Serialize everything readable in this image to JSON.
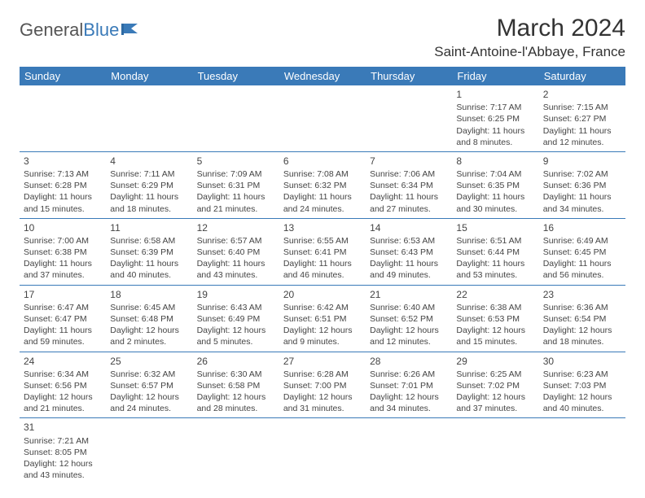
{
  "logo": {
    "text1": "General",
    "text2": "Blue"
  },
  "title": "March 2024",
  "location": "Saint-Antoine-l'Abbaye, France",
  "colors": {
    "header_bg": "#3a7ab8",
    "header_text": "#ffffff",
    "cell_border": "#3a7ab8",
    "body_text": "#444444",
    "title_text": "#333333"
  },
  "day_headers": [
    "Sunday",
    "Monday",
    "Tuesday",
    "Wednesday",
    "Thursday",
    "Friday",
    "Saturday"
  ],
  "weeks": [
    [
      null,
      null,
      null,
      null,
      null,
      {
        "n": "1",
        "sr": "Sunrise: 7:17 AM",
        "ss": "Sunset: 6:25 PM",
        "dl1": "Daylight: 11 hours",
        "dl2": "and 8 minutes."
      },
      {
        "n": "2",
        "sr": "Sunrise: 7:15 AM",
        "ss": "Sunset: 6:27 PM",
        "dl1": "Daylight: 11 hours",
        "dl2": "and 12 minutes."
      }
    ],
    [
      {
        "n": "3",
        "sr": "Sunrise: 7:13 AM",
        "ss": "Sunset: 6:28 PM",
        "dl1": "Daylight: 11 hours",
        "dl2": "and 15 minutes."
      },
      {
        "n": "4",
        "sr": "Sunrise: 7:11 AM",
        "ss": "Sunset: 6:29 PM",
        "dl1": "Daylight: 11 hours",
        "dl2": "and 18 minutes."
      },
      {
        "n": "5",
        "sr": "Sunrise: 7:09 AM",
        "ss": "Sunset: 6:31 PM",
        "dl1": "Daylight: 11 hours",
        "dl2": "and 21 minutes."
      },
      {
        "n": "6",
        "sr": "Sunrise: 7:08 AM",
        "ss": "Sunset: 6:32 PM",
        "dl1": "Daylight: 11 hours",
        "dl2": "and 24 minutes."
      },
      {
        "n": "7",
        "sr": "Sunrise: 7:06 AM",
        "ss": "Sunset: 6:34 PM",
        "dl1": "Daylight: 11 hours",
        "dl2": "and 27 minutes."
      },
      {
        "n": "8",
        "sr": "Sunrise: 7:04 AM",
        "ss": "Sunset: 6:35 PM",
        "dl1": "Daylight: 11 hours",
        "dl2": "and 30 minutes."
      },
      {
        "n": "9",
        "sr": "Sunrise: 7:02 AM",
        "ss": "Sunset: 6:36 PM",
        "dl1": "Daylight: 11 hours",
        "dl2": "and 34 minutes."
      }
    ],
    [
      {
        "n": "10",
        "sr": "Sunrise: 7:00 AM",
        "ss": "Sunset: 6:38 PM",
        "dl1": "Daylight: 11 hours",
        "dl2": "and 37 minutes."
      },
      {
        "n": "11",
        "sr": "Sunrise: 6:58 AM",
        "ss": "Sunset: 6:39 PM",
        "dl1": "Daylight: 11 hours",
        "dl2": "and 40 minutes."
      },
      {
        "n": "12",
        "sr": "Sunrise: 6:57 AM",
        "ss": "Sunset: 6:40 PM",
        "dl1": "Daylight: 11 hours",
        "dl2": "and 43 minutes."
      },
      {
        "n": "13",
        "sr": "Sunrise: 6:55 AM",
        "ss": "Sunset: 6:41 PM",
        "dl1": "Daylight: 11 hours",
        "dl2": "and 46 minutes."
      },
      {
        "n": "14",
        "sr": "Sunrise: 6:53 AM",
        "ss": "Sunset: 6:43 PM",
        "dl1": "Daylight: 11 hours",
        "dl2": "and 49 minutes."
      },
      {
        "n": "15",
        "sr": "Sunrise: 6:51 AM",
        "ss": "Sunset: 6:44 PM",
        "dl1": "Daylight: 11 hours",
        "dl2": "and 53 minutes."
      },
      {
        "n": "16",
        "sr": "Sunrise: 6:49 AM",
        "ss": "Sunset: 6:45 PM",
        "dl1": "Daylight: 11 hours",
        "dl2": "and 56 minutes."
      }
    ],
    [
      {
        "n": "17",
        "sr": "Sunrise: 6:47 AM",
        "ss": "Sunset: 6:47 PM",
        "dl1": "Daylight: 11 hours",
        "dl2": "and 59 minutes."
      },
      {
        "n": "18",
        "sr": "Sunrise: 6:45 AM",
        "ss": "Sunset: 6:48 PM",
        "dl1": "Daylight: 12 hours",
        "dl2": "and 2 minutes."
      },
      {
        "n": "19",
        "sr": "Sunrise: 6:43 AM",
        "ss": "Sunset: 6:49 PM",
        "dl1": "Daylight: 12 hours",
        "dl2": "and 5 minutes."
      },
      {
        "n": "20",
        "sr": "Sunrise: 6:42 AM",
        "ss": "Sunset: 6:51 PM",
        "dl1": "Daylight: 12 hours",
        "dl2": "and 9 minutes."
      },
      {
        "n": "21",
        "sr": "Sunrise: 6:40 AM",
        "ss": "Sunset: 6:52 PM",
        "dl1": "Daylight: 12 hours",
        "dl2": "and 12 minutes."
      },
      {
        "n": "22",
        "sr": "Sunrise: 6:38 AM",
        "ss": "Sunset: 6:53 PM",
        "dl1": "Daylight: 12 hours",
        "dl2": "and 15 minutes."
      },
      {
        "n": "23",
        "sr": "Sunrise: 6:36 AM",
        "ss": "Sunset: 6:54 PM",
        "dl1": "Daylight: 12 hours",
        "dl2": "and 18 minutes."
      }
    ],
    [
      {
        "n": "24",
        "sr": "Sunrise: 6:34 AM",
        "ss": "Sunset: 6:56 PM",
        "dl1": "Daylight: 12 hours",
        "dl2": "and 21 minutes."
      },
      {
        "n": "25",
        "sr": "Sunrise: 6:32 AM",
        "ss": "Sunset: 6:57 PM",
        "dl1": "Daylight: 12 hours",
        "dl2": "and 24 minutes."
      },
      {
        "n": "26",
        "sr": "Sunrise: 6:30 AM",
        "ss": "Sunset: 6:58 PM",
        "dl1": "Daylight: 12 hours",
        "dl2": "and 28 minutes."
      },
      {
        "n": "27",
        "sr": "Sunrise: 6:28 AM",
        "ss": "Sunset: 7:00 PM",
        "dl1": "Daylight: 12 hours",
        "dl2": "and 31 minutes."
      },
      {
        "n": "28",
        "sr": "Sunrise: 6:26 AM",
        "ss": "Sunset: 7:01 PM",
        "dl1": "Daylight: 12 hours",
        "dl2": "and 34 minutes."
      },
      {
        "n": "29",
        "sr": "Sunrise: 6:25 AM",
        "ss": "Sunset: 7:02 PM",
        "dl1": "Daylight: 12 hours",
        "dl2": "and 37 minutes."
      },
      {
        "n": "30",
        "sr": "Sunrise: 6:23 AM",
        "ss": "Sunset: 7:03 PM",
        "dl1": "Daylight: 12 hours",
        "dl2": "and 40 minutes."
      }
    ],
    [
      {
        "n": "31",
        "sr": "Sunrise: 7:21 AM",
        "ss": "Sunset: 8:05 PM",
        "dl1": "Daylight: 12 hours",
        "dl2": "and 43 minutes."
      },
      null,
      null,
      null,
      null,
      null,
      null
    ]
  ]
}
